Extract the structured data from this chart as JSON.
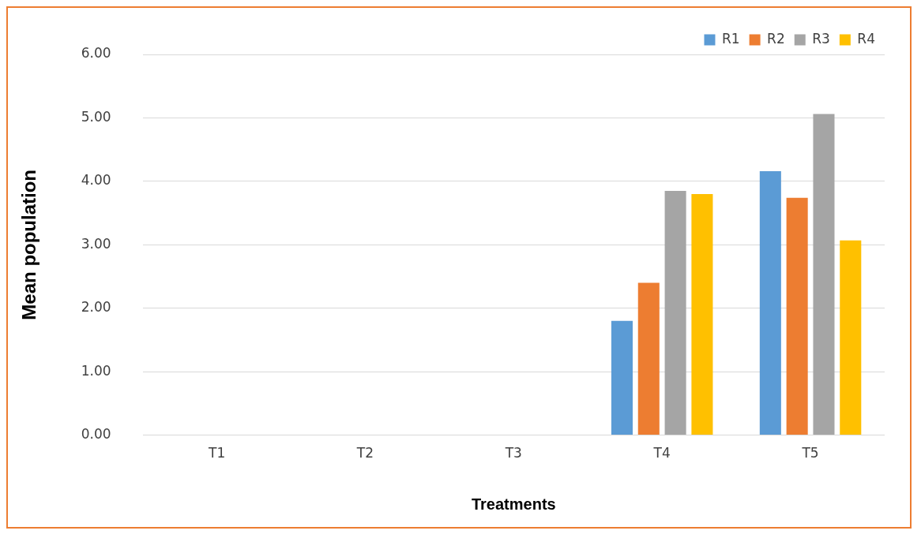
{
  "chart_data": {
    "type": "bar",
    "xlabel": "Treatments",
    "ylabel": "Mean population",
    "categories": [
      "T1",
      "T2",
      "T3",
      "T4",
      "T5"
    ],
    "series": [
      {
        "name": "R1",
        "color": "#5b9bd5",
        "values": [
          0,
          0,
          0,
          1.8,
          4.16
        ]
      },
      {
        "name": "R2",
        "color": "#ed7d31",
        "values": [
          0,
          0,
          0,
          2.4,
          3.74
        ]
      },
      {
        "name": "R3",
        "color": "#a5a5a5",
        "values": [
          0,
          0,
          0,
          3.85,
          5.06
        ]
      },
      {
        "name": "R4",
        "color": "#ffc000",
        "values": [
          0,
          0,
          0,
          3.8,
          3.07
        ]
      }
    ],
    "ylim": [
      0,
      6
    ],
    "yticks": [
      {
        "value": 0,
        "label": "0.00"
      },
      {
        "value": 1,
        "label": "1.00"
      },
      {
        "value": 2,
        "label": "2.00"
      },
      {
        "value": 3,
        "label": "3.00"
      },
      {
        "value": 4,
        "label": "4.00"
      },
      {
        "value": 5,
        "label": "5.00"
      },
      {
        "value": 6,
        "label": "6.00"
      }
    ],
    "grid": "y",
    "legend": "top right"
  }
}
